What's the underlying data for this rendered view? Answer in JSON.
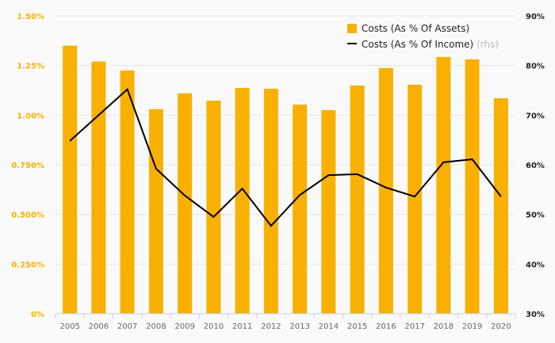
{
  "chart_data": {
    "type": "bar+line",
    "categories": [
      "2005",
      "2006",
      "2007",
      "2008",
      "2009",
      "2010",
      "2011",
      "2012",
      "2013",
      "2014",
      "2015",
      "2016",
      "2017",
      "2018",
      "2019",
      "2020"
    ],
    "series": [
      {
        "name": "Costs (As % Of Assets)",
        "axis": "left",
        "type": "bar",
        "color": "#f9b000",
        "values": [
          1.35,
          1.27,
          1.225,
          1.03,
          1.11,
          1.073,
          1.137,
          1.133,
          1.053,
          1.025,
          1.149,
          1.237,
          1.153,
          1.293,
          1.281,
          1.085
        ]
      },
      {
        "name": "Costs (As % Of Income)",
        "suffix": "(rhs)",
        "axis": "right",
        "type": "line",
        "color": "#000000",
        "values": [
          64.8,
          70.0,
          75.2,
          59.2,
          53.8,
          49.5,
          55.2,
          47.7,
          53.9,
          57.9,
          58.1,
          55.4,
          53.6,
          60.5,
          61.1,
          53.6
        ]
      }
    ],
    "left_axis": {
      "ylim": [
        0,
        1.5
      ],
      "ticks": [
        0,
        0.25,
        0.5,
        0.75,
        1.0,
        1.25,
        1.5
      ],
      "tick_labels": [
        "0%",
        "0.250%",
        "0.500%",
        "0.750%",
        "1.00%",
        "1.25%",
        "1.50%"
      ]
    },
    "right_axis": {
      "ylim": [
        30,
        90
      ],
      "ticks": [
        30,
        40,
        50,
        60,
        70,
        80,
        90
      ],
      "tick_labels": [
        "30%",
        "40%",
        "50%",
        "60%",
        "70%",
        "80%",
        "90%"
      ]
    },
    "legend_placement": "top-right",
    "grid": true
  }
}
